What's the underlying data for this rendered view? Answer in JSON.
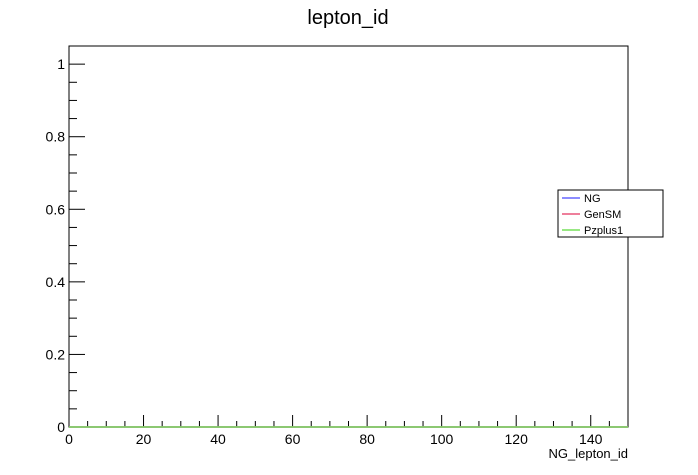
{
  "chart_data": {
    "type": "line",
    "title": "lepton_id",
    "xlabel": "NG_lepton_id",
    "ylabel": "",
    "xlim": [
      0,
      150
    ],
    "ylim": [
      0,
      1.05
    ],
    "x_ticks": [
      {
        "value": 0,
        "label": "0"
      },
      {
        "value": 20,
        "label": "20"
      },
      {
        "value": 40,
        "label": "40"
      },
      {
        "value": 60,
        "label": "60"
      },
      {
        "value": 80,
        "label": "80"
      },
      {
        "value": 100,
        "label": "100"
      },
      {
        "value": 120,
        "label": "120"
      },
      {
        "value": 140,
        "label": "140"
      }
    ],
    "y_ticks": [
      {
        "value": 0,
        "label": "0"
      },
      {
        "value": 0.2,
        "label": "0.2"
      },
      {
        "value": 0.4,
        "label": "0.4"
      },
      {
        "value": 0.6,
        "label": "0.6"
      },
      {
        "value": 0.8,
        "label": "0.8"
      },
      {
        "value": 1,
        "label": "1"
      }
    ],
    "x_minor_step": 5,
    "y_minor_step": 0.05,
    "legend_position": "right",
    "series": [
      {
        "name": "NG",
        "color": "#6666ff",
        "x": [
          0,
          150
        ],
        "y": [
          0,
          0
        ]
      },
      {
        "name": "GenSM",
        "color": "#e8557a",
        "x": [
          0,
          150
        ],
        "y": [
          0,
          0
        ]
      },
      {
        "name": "Pzplus1",
        "color": "#77e05a",
        "x": [
          0,
          150
        ],
        "y": [
          0,
          0
        ]
      }
    ]
  }
}
